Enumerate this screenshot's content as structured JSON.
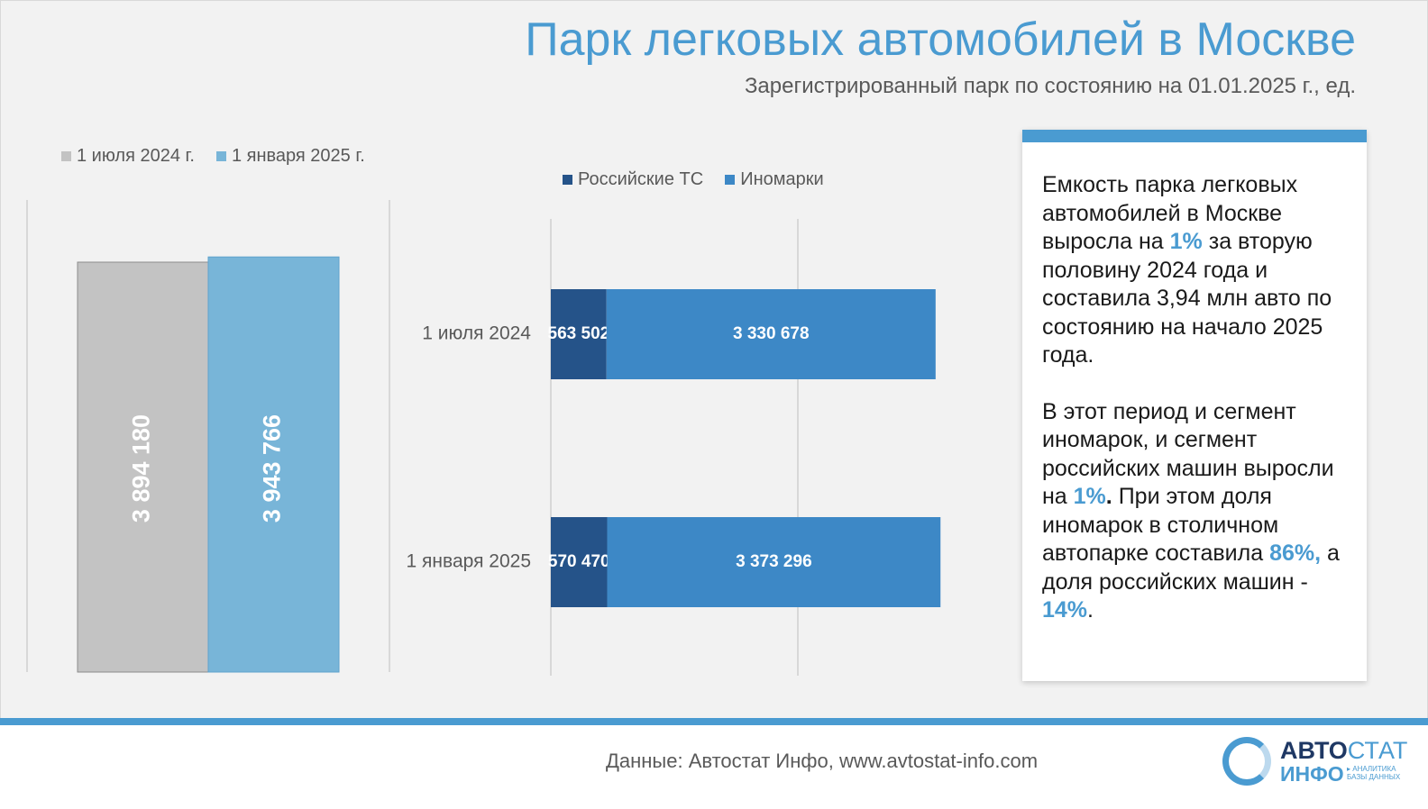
{
  "header": {
    "title": "Парк легковых автомобилей в Москве",
    "subtitle": "Зарегистрированный парк по состоянию на 01.01.2025 г., ед."
  },
  "chart_data": [
    {
      "type": "bar",
      "categories": [
        "1 июля 2024 г.",
        "1 января 2025 г."
      ],
      "values": [
        3894180,
        3943766
      ],
      "value_labels": [
        "3 894 180",
        "3 943 766"
      ],
      "colors": [
        "#c3c3c3",
        "#78b5d8"
      ],
      "legend": [
        "1 июля 2024 г.",
        "1 января 2025 г."
      ],
      "legend_position": "top-left",
      "ylim": [
        0,
        4500000
      ],
      "grid": false
    },
    {
      "type": "bar",
      "orientation": "horizontal",
      "stacked": true,
      "categories": [
        "1 июля 2024",
        "1 января 2025"
      ],
      "series": [
        {
          "name": "Российские ТС",
          "values": [
            563502,
            570470
          ],
          "labels": [
            "563 502",
            "570 470"
          ],
          "color": "#255389"
        },
        {
          "name": "Иномарки",
          "values": [
            3330678,
            3373296
          ],
          "labels": [
            "3 330 678",
            "3 373 296"
          ],
          "color": "#3d88c6"
        }
      ],
      "xlim": [
        0,
        5000000
      ],
      "gridline_at": [
        0,
        2500000
      ],
      "legend_position": "top",
      "grid": true
    }
  ],
  "panel": {
    "p1_a": "Емкость парка легковых автомобилей в Москве выросла на ",
    "p1_pct": "1%",
    "p1_b": " за вторую половину 2024 года и составила 3,94 млн авто по состоянию на начало 2025 года.",
    "p2_a": "В этот период и сегмент иномарок, и сегмент российских машин выросли на ",
    "p2_pct": "1%",
    "p2_dot": ".",
    "p2_b": " При этом  доля иномарок в столичном автопарке составила ",
    "p2_pct2": "86%,",
    "p2_c": " а доля российских машин - ",
    "p2_pct3": "14%",
    "p2_end": "."
  },
  "footer": {
    "source": "Данные: Автостат Инфо, www.avtostat-info.com",
    "logo_top_a": "АВТО",
    "logo_top_b": "СТАТ",
    "logo_bottom": "ИНФО",
    "logo_tag_1": "▸ АНАЛИТИКА",
    "logo_tag_2": "БАЗЫ ДАННЫХ"
  }
}
